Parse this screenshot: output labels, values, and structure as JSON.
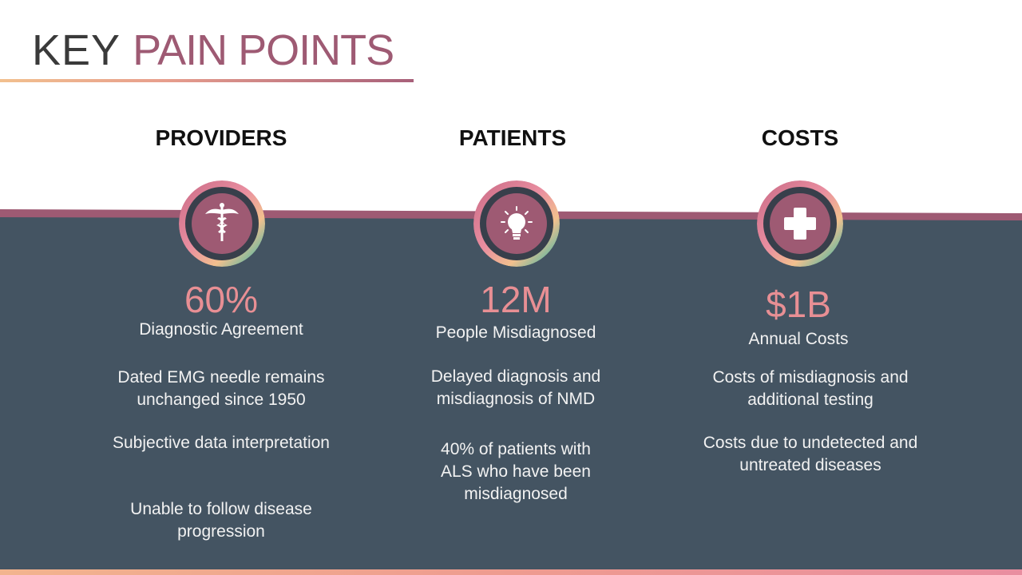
{
  "title": {
    "light": "KEY ",
    "accent": "PAIN POINTS"
  },
  "columns": [
    {
      "heading": "PROVIDERS",
      "icon": "caduceus-icon",
      "stat": "60%",
      "stat_label": "Diagnostic Agreement",
      "points": [
        "Dated EMG needle remains unchanged since 1950",
        "Subjective data interpretation",
        "Unable to follow disease progression"
      ]
    },
    {
      "heading": "PATIENTS",
      "icon": "lightbulb-icon",
      "stat": "12M",
      "stat_label": "People Misdiagnosed",
      "points": [
        "Delayed diagnosis and misdiagnosis of NMD",
        "40% of patients with ALS who have been misdiagnosed"
      ]
    },
    {
      "heading": "COSTS",
      "icon": "medical-cross-icon",
      "stat": "$1B",
      "stat_label": "Annual Costs",
      "points": [
        "Costs of misdiagnosis and additional testing",
        "Costs due to undetected and untreated diseases"
      ]
    }
  ],
  "colors": {
    "accent": "#9e5a73",
    "band": "#445462",
    "stat": "#e88f94",
    "ring_gradient": [
      "#e98ea0",
      "#f2c08e",
      "#26b5a8"
    ]
  }
}
